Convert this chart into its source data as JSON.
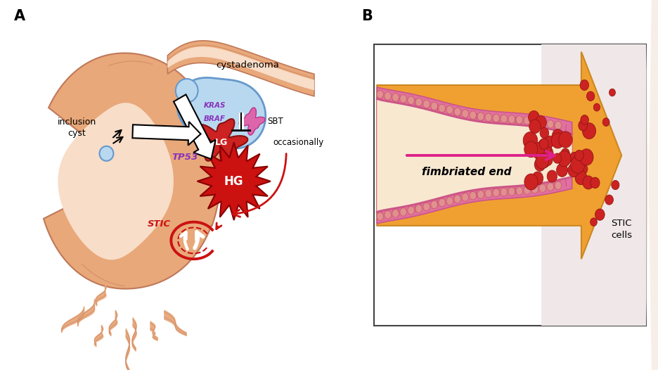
{
  "panel_a_label": "A",
  "panel_b_label": "B",
  "label_inclusion_cyst": "inclusion\ncyst",
  "label_cystadenoma": "cystadenoma",
  "label_sbt": "SBT",
  "label_lg": "LG",
  "label_hg": "HG",
  "label_stic_left": "STIC",
  "label_tp53": "TP53",
  "label_kras": "KRAS",
  "label_braf": "BRAF",
  "label_occasionally": "occasionally",
  "label_fimbriated": "fimbriated end",
  "label_stic_cells": "STIC\ncells",
  "bg_color": "#ffffff",
  "ovary_skin_color": "#e8a87a",
  "ovary_skin_dark": "#c07858",
  "ovary_inner_color": "#f8ddc8",
  "blue_cyst_color": "#b8d8f0",
  "blue_cyst_outline": "#6699cc",
  "small_cyst_color": "#b8d8f0",
  "lg_color": "#cc2222",
  "hg_color": "#cc1111",
  "stic_outline_color": "#cc1111",
  "purple_text_color": "#8833bb",
  "box_outline": "#444444",
  "orange_arrow_color": "#f0a030",
  "orange_arrow_edge": "#cc8820",
  "pink_arrow_color": "#dd2288",
  "red_cells_color": "#cc2222",
  "red_cells_edge": "#881111",
  "stic_label_color": "#cc1111",
  "fallopian_pink": "#e070a0",
  "fallopian_light": "#f8d0d8",
  "fallopian_lining": "#cc5588",
  "sbt_color": "#dd66aa",
  "sbt_edge": "#bb3388"
}
